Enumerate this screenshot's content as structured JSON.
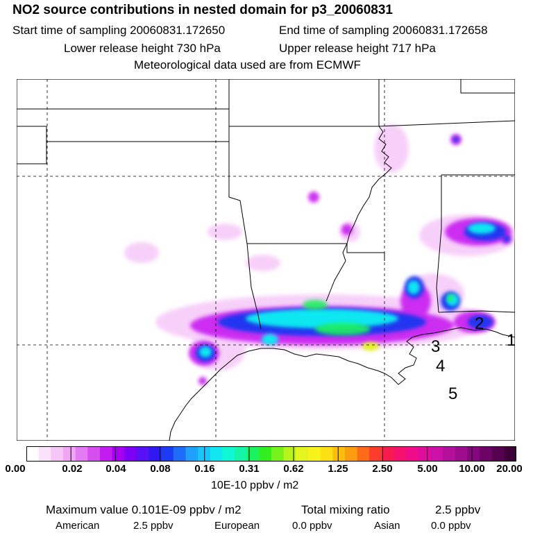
{
  "title": "NO2 source contributions in nested domain for p3_20060831",
  "start_time": "Start time of sampling 20060831.172650",
  "end_time": "End time of sampling 20060831.172658",
  "lower_height": "Lower release height  730 hPa",
  "upper_height": "Upper release height  717 hPa",
  "met_data": "Meteorological data used are from ECMWF",
  "map_labels": [
    "1",
    "2",
    "3",
    "4",
    "5"
  ],
  "colorbar": {
    "ticks": [
      "0.00",
      "0.02",
      "0.04",
      "0.08",
      "0.16",
      "0.31",
      "0.62",
      "1.25",
      "2.50",
      "5.00",
      "10.00",
      "20.00"
    ],
    "unit": "10E-10 ppbv / m2",
    "colors": [
      "#ffffff",
      "#fbe2fb",
      "#f6c6f6",
      "#f0a6f3",
      "#e27cf0",
      "#d44fee",
      "#c41cf0",
      "#a700f0",
      "#7e00f4",
      "#5810f5",
      "#3118f0",
      "#1b3cf2",
      "#1f6cf8",
      "#1fa0fb",
      "#17c6fb",
      "#10e7f1",
      "#10f7d6",
      "#14f6a6",
      "#1af35e",
      "#30ee1f",
      "#74f21a",
      "#b8f41c",
      "#e4f41d",
      "#f6f21b",
      "#fce013",
      "#fcc00c",
      "#fc9c0f",
      "#fc6c18",
      "#fc3c2c",
      "#f81c4e",
      "#f4106c",
      "#ee0c8a",
      "#e00c9e",
      "#cc10a8",
      "#b4109c",
      "#9c0c8c",
      "#84087c",
      "#6c0468",
      "#560250",
      "#3e0038"
    ]
  },
  "footer": {
    "max_value": "Maximum value  0.101E-09 ppbv / m2",
    "total_label": "Total mixing ratio",
    "total_value": "2.5 ppbv",
    "american_label": "American",
    "american_value": "2.5 ppbv",
    "european_label": "European",
    "european_value": "0.0 ppbv",
    "asian_label": "Asian",
    "asian_value": "0.0 ppbv"
  }
}
